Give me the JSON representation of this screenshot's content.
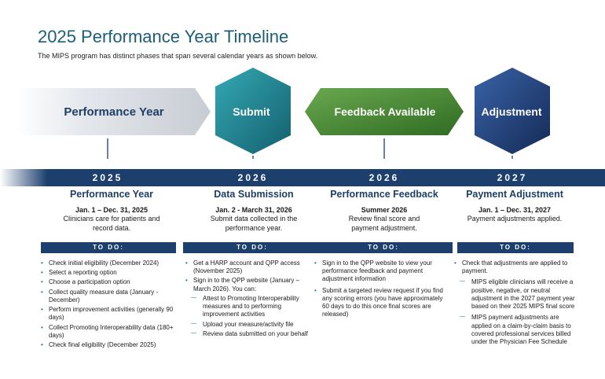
{
  "header": {
    "title": "2025 Performance Year Timeline",
    "subtitle": "The MIPS program has distinct phases that span several calendar years as shown below."
  },
  "shapes": [
    {
      "label": "Performance Year",
      "color": "#d9dde3"
    },
    {
      "label": "Submit",
      "color": "#1c8a96"
    },
    {
      "label": "Feedback Available",
      "color": "#4a8a34"
    },
    {
      "label": "Adjustment",
      "color": "#1f3f7a"
    }
  ],
  "years": [
    "2025",
    "2026",
    "2026",
    "2027"
  ],
  "todo_label": "TO DO:",
  "columns": [
    {
      "title": "Performance Year",
      "date": "Jan. 1 – Dec. 31, 2025",
      "desc": "Clinicians care for patients and record data.",
      "items": [
        {
          "text": "Check initial eligibility (December 2024)",
          "sub": false
        },
        {
          "text": "Select a reporting option",
          "sub": false
        },
        {
          "text": "Choose a participation option",
          "sub": false
        },
        {
          "text": "Collect quality measure data (January - December)",
          "sub": false
        },
        {
          "text": "Perform improvement activities (generally 90 days)",
          "sub": false
        },
        {
          "text": "Collect Promoting Interoperability data (180+ days)",
          "sub": false
        },
        {
          "text": "Check final eligibility (December 2025)",
          "sub": false
        }
      ]
    },
    {
      "title": "Data Submission",
      "date": "Jan. 2 - March 31, 2026",
      "desc": "Submit data collected in the performance year.",
      "items": [
        {
          "text": "Get a HARP account and QPP access (November 2025)",
          "sub": false
        },
        {
          "text": "Sign in to the QPP website (January – March 2026). You can:",
          "sub": false
        },
        {
          "text": "Attest to Promoting Interoperability measures and to performing improvement activities",
          "sub": true
        },
        {
          "text": "Upload your measure/activity file",
          "sub": true
        },
        {
          "text": "Review data submitted on your behalf",
          "sub": true
        }
      ]
    },
    {
      "title": "Performance Feedback",
      "date": "Summer 2026",
      "desc": "Review final score and payment adjustment.",
      "items": [
        {
          "text": "Sign in to the QPP website to view your performance feedback and payment adjustment information",
          "sub": false
        },
        {
          "text": "Submit a targeted review request if you find any scoring errors (you have approximately 60 days to do this once final scores are released)",
          "sub": false
        }
      ]
    },
    {
      "title": "Payment Adjustment",
      "date": "Jan. 1 – Dec. 31, 2027",
      "desc": "Payment adjustments applied.",
      "items": [
        {
          "text": "Check that adjustments are applied to payment.",
          "sub": false
        },
        {
          "text": "MIPS eligible clinicians will receive a positive, negative, or neutral adjustment in the 2027 payment year based on their 2025 MIPS final score",
          "sub": true
        },
        {
          "text": "MIPS payment adjustments are applied on a claim-by-claim basis to covered professional services billed under the Physician Fee Schedule",
          "sub": true
        }
      ]
    }
  ]
}
